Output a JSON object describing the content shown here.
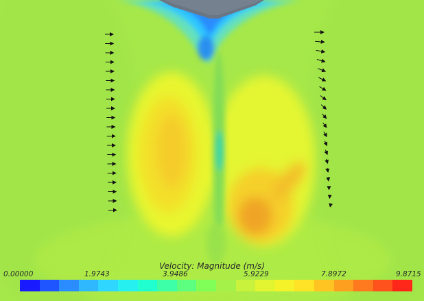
{
  "legend": {
    "title": "Velocity: Magnitude (m/s)",
    "tick_labels": [
      "0.00000",
      "1.9743",
      "3.9486",
      "5.9229",
      "7.8972",
      "9.8715"
    ],
    "range": [
      0.0,
      9.8715
    ],
    "colormap": [
      "#1a1aff",
      "#1f55ff",
      "#2a8cff",
      "#30b8ff",
      "#2fd6ff",
      "#26f0f0",
      "#20ffd0",
      "#3cffa8",
      "#5cff80",
      "#80ff58",
      "#a6f04a",
      "#c8f23c",
      "#e2f530",
      "#f5f22a",
      "#ffe326",
      "#ffc322",
      "#ff9f20",
      "#ff7a1e",
      "#ff521c",
      "#ff261a"
    ]
  },
  "colors": {
    "background_field": "#a6e84a",
    "hull": "#6a7684",
    "arrows": "#111111"
  }
}
